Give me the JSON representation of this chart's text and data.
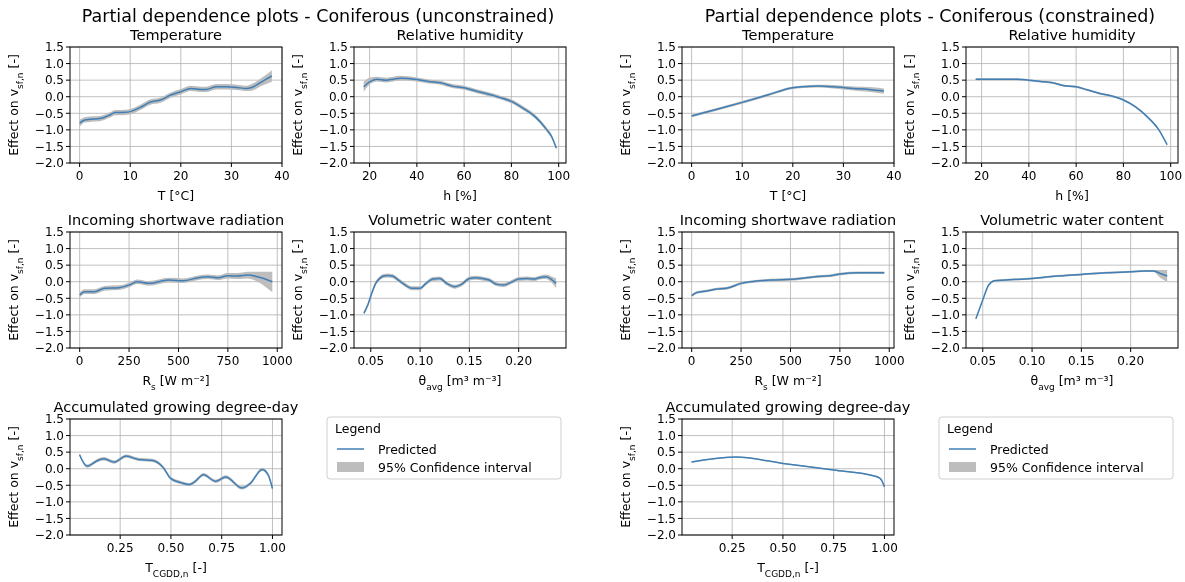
{
  "chart_data": [
    {
      "type": "line",
      "title": "Temperature",
      "xlabel": "T [°C]",
      "ylabel": "Effect on v$_{sf,n}$ [-]",
      "annotations": [
        "Partial dependence plots - Coniferous (unconstrained)"
      ],
      "xlim": [
        -1.9,
        40
      ],
      "xticks": [
        0,
        10,
        20,
        30,
        40
      ],
      "ylim": [
        -2,
        1.5
      ],
      "yticks": [
        {
          "value": -2,
          "label": "−2.0"
        },
        {
          "value": -1.5,
          "label": "−1.5"
        },
        {
          "value": -1,
          "label": "−1.0"
        },
        {
          "value": -0.5,
          "label": "−0.5"
        },
        {
          "value": 0,
          "label": "0.0"
        },
        {
          "value": 0.5,
          "label": "0.5"
        },
        {
          "value": 1,
          "label": "1.0"
        },
        {
          "value": 1.5,
          "label": "1.5"
        }
      ],
      "grid": true,
      "x": [
        0,
        1,
        2,
        4,
        6,
        7,
        9,
        10,
        12,
        14,
        16,
        18,
        20,
        22,
        24,
        25,
        27,
        29,
        31,
        33,
        34,
        36,
        38
      ],
      "series": [
        {
          "color": "#3f7fb6",
          "values": [
            -0.8,
            -0.7,
            -0.68,
            -0.66,
            -0.55,
            -0.48,
            -0.47,
            -0.45,
            -0.32,
            -0.16,
            -0.1,
            0.05,
            0.15,
            0.25,
            0.22,
            0.22,
            0.3,
            0.3,
            0.28,
            0.25,
            0.28,
            0.45,
            0.63
          ],
          "lower": [
            -0.9,
            -0.78,
            -0.76,
            -0.74,
            -0.63,
            -0.56,
            -0.55,
            -0.53,
            -0.4,
            -0.24,
            -0.18,
            -0.03,
            0.07,
            0.17,
            0.14,
            0.14,
            0.22,
            0.22,
            0.2,
            0.17,
            0.18,
            0.33,
            0.45
          ],
          "upper": [
            -0.7,
            -0.62,
            -0.6,
            -0.58,
            -0.47,
            -0.4,
            -0.39,
            -0.37,
            -0.24,
            -0.08,
            -0.02,
            0.13,
            0.23,
            0.33,
            0.3,
            0.3,
            0.38,
            0.38,
            0.36,
            0.33,
            0.38,
            0.57,
            0.8
          ]
        }
      ]
    },
    {
      "type": "line",
      "title": "Relative humidity",
      "xlabel": "h [%]",
      "ylabel": "Effect on v$_{sf,n}$ [-]",
      "xlim": [
        13.4,
        103.1
      ],
      "xticks": [
        20,
        40,
        60,
        80,
        100
      ],
      "ylim": [
        -2,
        1.5
      ],
      "yticks": [
        {
          "value": -2,
          "label": "−2.0"
        },
        {
          "value": -1.5,
          "label": "−1.5"
        },
        {
          "value": -1,
          "label": "−1.0"
        },
        {
          "value": -0.5,
          "label": "−0.5"
        },
        {
          "value": 0,
          "label": "0.0"
        },
        {
          "value": 0.5,
          "label": "0.5"
        },
        {
          "value": 1,
          "label": "1.0"
        },
        {
          "value": 1.5,
          "label": "1.5"
        }
      ],
      "grid": true,
      "x": [
        17.5,
        20,
        23,
        27,
        30,
        33,
        40,
        45,
        50,
        55,
        60,
        65,
        70,
        75,
        80,
        85,
        90,
        95,
        97,
        99
      ],
      "series": [
        {
          "color": "#3f7fb6",
          "values": [
            0.3,
            0.45,
            0.53,
            0.5,
            0.53,
            0.56,
            0.52,
            0.46,
            0.42,
            0.32,
            0.27,
            0.17,
            0.08,
            -0.02,
            -0.14,
            -0.35,
            -0.6,
            -1.0,
            -1.2,
            -1.55
          ],
          "lower": [
            0.15,
            0.37,
            0.46,
            0.43,
            0.46,
            0.49,
            0.46,
            0.4,
            0.36,
            0.26,
            0.21,
            0.11,
            0.02,
            -0.08,
            -0.2,
            -0.41,
            -0.66,
            -1.06,
            -1.26,
            -1.6
          ],
          "upper": [
            0.45,
            0.57,
            0.6,
            0.57,
            0.6,
            0.63,
            0.58,
            0.52,
            0.48,
            0.38,
            0.33,
            0.23,
            0.14,
            0.04,
            -0.08,
            -0.29,
            -0.54,
            -0.94,
            -1.14,
            -1.5
          ]
        }
      ]
    },
    {
      "type": "line",
      "title": "Incoming shortwave radiation",
      "xlabel": "R$_{s}$ [W m⁻²]",
      "ylabel": "Effect on v$_{sf,n}$ [-]",
      "xlim": [
        -49,
        1024
      ],
      "xticks": [
        0,
        250,
        500,
        750,
        1000
      ],
      "ylim": [
        -2,
        1.5
      ],
      "yticks": [
        {
          "value": -2,
          "label": "−2.0"
        },
        {
          "value": -1.5,
          "label": "−1.5"
        },
        {
          "value": -1,
          "label": "−1.0"
        },
        {
          "value": -0.5,
          "label": "−0.5"
        },
        {
          "value": 0,
          "label": "0.0"
        },
        {
          "value": 0.5,
          "label": "0.5"
        },
        {
          "value": 1,
          "label": "1.0"
        },
        {
          "value": 1.5,
          "label": "1.5"
        }
      ],
      "grid": true,
      "x": [
        0,
        25,
        75,
        125,
        200,
        250,
        290,
        350,
        450,
        525,
        600,
        650,
        700,
        750,
        800,
        850,
        900,
        975
      ],
      "series": [
        {
          "color": "#3f7fb6",
          "values": [
            -0.4,
            -0.3,
            -0.3,
            -0.2,
            -0.18,
            -0.1,
            0.0,
            -0.05,
            0.05,
            0.03,
            0.12,
            0.15,
            0.12,
            0.18,
            0.17,
            0.2,
            0.15,
            0.0
          ],
          "lower": [
            -0.48,
            -0.37,
            -0.37,
            -0.27,
            -0.25,
            -0.17,
            -0.07,
            -0.12,
            -0.02,
            -0.04,
            0.05,
            0.08,
            0.05,
            0.1,
            0.08,
            0.1,
            0.0,
            -0.32
          ],
          "upper": [
            -0.32,
            -0.23,
            -0.23,
            -0.13,
            -0.11,
            -0.03,
            0.07,
            0.02,
            0.12,
            0.1,
            0.19,
            0.22,
            0.19,
            0.26,
            0.26,
            0.3,
            0.3,
            0.3
          ]
        }
      ]
    },
    {
      "type": "line",
      "title": "Volumetric water content",
      "xlabel": "θ$_{avg}$ [m³ m⁻³]",
      "ylabel": "Effect on v$_{sf,n}$ [-]",
      "xlim": [
        0.033,
        0.248
      ],
      "xticks": [
        0.05,
        {
          "value": 0.1,
          "label": "0.10"
        },
        0.15,
        {
          "value": 0.2,
          "label": "0.20"
        }
      ],
      "ylim": [
        -2,
        1.5
      ],
      "yticks": [
        {
          "value": -2,
          "label": "−2.0"
        },
        {
          "value": -1.5,
          "label": "−1.5"
        },
        {
          "value": -1,
          "label": "−1.0"
        },
        {
          "value": -0.5,
          "label": "−0.5"
        },
        {
          "value": 0,
          "label": "0.0"
        },
        {
          "value": 0.5,
          "label": "0.5"
        },
        {
          "value": 1,
          "label": "1.0"
        },
        {
          "value": 1.5,
          "label": "1.5"
        }
      ],
      "grid": true,
      "x": [
        0.043,
        0.047,
        0.051,
        0.055,
        0.059,
        0.063,
        0.067,
        0.072,
        0.078,
        0.085,
        0.092,
        0.1,
        0.106,
        0.113,
        0.12,
        0.127,
        0.135,
        0.142,
        0.15,
        0.156,
        0.163,
        0.17,
        0.178,
        0.185,
        0.192,
        0.2,
        0.208,
        0.215,
        0.222,
        0.228,
        0.234,
        0.238
      ],
      "series": [
        {
          "color": "#3f7fb6",
          "values": [
            -0.95,
            -0.7,
            -0.35,
            -0.05,
            0.1,
            0.17,
            0.19,
            0.17,
            0.05,
            -0.1,
            -0.2,
            -0.2,
            -0.05,
            0.08,
            0.1,
            -0.05,
            -0.15,
            -0.08,
            0.1,
            0.12,
            0.1,
            0.05,
            -0.08,
            -0.1,
            -0.02,
            0.08,
            0.1,
            0.08,
            0.13,
            0.15,
            0.05,
            -0.05
          ],
          "lower": [
            -1.0,
            -0.76,
            -0.41,
            -0.11,
            0.04,
            0.11,
            0.13,
            0.11,
            -0.01,
            -0.16,
            -0.26,
            -0.26,
            -0.11,
            0.02,
            0.04,
            -0.11,
            -0.21,
            -0.14,
            0.04,
            0.06,
            0.04,
            -0.01,
            -0.14,
            -0.16,
            -0.08,
            0.02,
            0.04,
            0.02,
            0.07,
            0.08,
            -0.05,
            -0.2
          ],
          "upper": [
            -0.9,
            -0.64,
            -0.29,
            0.01,
            0.16,
            0.23,
            0.25,
            0.23,
            0.11,
            -0.04,
            -0.14,
            -0.14,
            0.01,
            0.14,
            0.16,
            0.01,
            -0.09,
            -0.02,
            0.16,
            0.18,
            0.16,
            0.11,
            -0.02,
            -0.04,
            0.04,
            0.14,
            0.16,
            0.14,
            0.19,
            0.22,
            0.15,
            0.1
          ]
        }
      ]
    },
    {
      "type": "line",
      "title": "Accumulated growing degree-day",
      "xlabel": "T$_{CGDD,n}$ [-]",
      "ylabel": "Effect on v$_{sf,n}$ [-]",
      "legend": "right",
      "legend_title": "Legend",
      "annotations": [
        "95% Confidence interval"
      ],
      "xlim": [
        0.003,
        1.047
      ],
      "xticks": [
        0.25,
        {
          "value": 0.5,
          "label": "0.50"
        },
        0.75,
        {
          "value": 1,
          "label": "1.00"
        }
      ],
      "ylim": [
        -2,
        1.5
      ],
      "yticks": [
        {
          "value": -2,
          "label": "−2.0"
        },
        {
          "value": -1.5,
          "label": "−1.5"
        },
        {
          "value": -1,
          "label": "−1.0"
        },
        {
          "value": -0.5,
          "label": "−0.5"
        },
        {
          "value": 0,
          "label": "0.0"
        },
        {
          "value": 0.5,
          "label": "0.5"
        },
        {
          "value": 1,
          "label": "1.0"
        },
        {
          "value": 1.5,
          "label": "1.5"
        }
      ],
      "grid": true,
      "x": [
        0.05,
        0.087,
        0.14,
        0.17,
        0.22,
        0.28,
        0.34,
        0.41,
        0.46,
        0.5,
        0.55,
        0.59,
        0.62,
        0.66,
        0.72,
        0.77,
        0.85,
        0.89,
        0.95,
        0.98,
        1.0
      ],
      "series": [
        {
          "name": "Predicted",
          "color": "#3f7fb6",
          "values": [
            0.42,
            0.08,
            0.25,
            0.3,
            0.2,
            0.38,
            0.28,
            0.25,
            0.05,
            -0.3,
            -0.42,
            -0.48,
            -0.38,
            -0.18,
            -0.38,
            -0.25,
            -0.58,
            -0.45,
            -0.02,
            -0.2,
            -0.6
          ],
          "lower": [
            0.37,
            0.03,
            0.2,
            0.25,
            0.15,
            0.33,
            0.23,
            0.2,
            0.0,
            -0.35,
            -0.47,
            -0.53,
            -0.43,
            -0.23,
            -0.43,
            -0.3,
            -0.63,
            -0.5,
            -0.07,
            -0.25,
            -0.65
          ],
          "upper": [
            0.47,
            0.13,
            0.3,
            0.35,
            0.25,
            0.43,
            0.33,
            0.3,
            0.1,
            -0.25,
            -0.37,
            -0.43,
            -0.33,
            -0.13,
            -0.33,
            -0.2,
            -0.53,
            -0.4,
            0.03,
            -0.15,
            -0.55
          ]
        }
      ]
    },
    {
      "type": "line",
      "title": "Temperature",
      "xlabel": "T [°C]",
      "ylabel": "Effect on v$_{sf,n}$ [-]",
      "annotations": [
        "Partial dependence plots - Coniferous (constrained)"
      ],
      "xlim": [
        -1.9,
        40
      ],
      "xticks": [
        0,
        10,
        20,
        30,
        40
      ],
      "ylim": [
        -2,
        1.5
      ],
      "yticks": [
        {
          "value": -2,
          "label": "−2.0"
        },
        {
          "value": -1.5,
          "label": "−1.5"
        },
        {
          "value": -1,
          "label": "−1.0"
        },
        {
          "value": -0.5,
          "label": "−0.5"
        },
        {
          "value": 0,
          "label": "0.0"
        },
        {
          "value": 0.5,
          "label": "0.5"
        },
        {
          "value": 1,
          "label": "1.0"
        },
        {
          "value": 1.5,
          "label": "1.5"
        }
      ],
      "grid": true,
      "x": [
        0,
        5,
        10,
        15,
        20,
        22,
        25,
        28,
        32,
        35,
        38
      ],
      "series": [
        {
          "color": "#3f7fb6",
          "values": [
            -0.58,
            -0.38,
            -0.17,
            0.05,
            0.27,
            0.3,
            0.32,
            0.3,
            0.25,
            0.22,
            0.17
          ],
          "lower": [
            -0.62,
            -0.42,
            -0.21,
            0.01,
            0.23,
            0.26,
            0.28,
            0.25,
            0.19,
            0.15,
            0.09
          ],
          "upper": [
            -0.54,
            -0.34,
            -0.13,
            0.09,
            0.31,
            0.34,
            0.36,
            0.35,
            0.31,
            0.29,
            0.25
          ]
        }
      ]
    },
    {
      "type": "line",
      "title": "Relative humidity",
      "xlabel": "h [%]",
      "ylabel": "Effect on v$_{sf,n}$ [-]",
      "xlim": [
        13.4,
        103.1
      ],
      "xticks": [
        20,
        40,
        60,
        80,
        100
      ],
      "ylim": [
        -2,
        1.5
      ],
      "yticks": [
        {
          "value": -2,
          "label": "−2.0"
        },
        {
          "value": -1.5,
          "label": "−1.5"
        },
        {
          "value": -1,
          "label": "−1.0"
        },
        {
          "value": -0.5,
          "label": "−0.5"
        },
        {
          "value": 0,
          "label": "0.0"
        },
        {
          "value": 0.5,
          "label": "0.5"
        },
        {
          "value": 1,
          "label": "1.0"
        },
        {
          "value": 1.5,
          "label": "1.5"
        }
      ],
      "grid": true,
      "x": [
        17.5,
        25,
        35,
        40,
        45,
        50,
        55,
        60,
        65,
        70,
        75,
        80,
        85,
        90,
        95,
        98.5
      ],
      "series": [
        {
          "color": "#3f7fb6",
          "values": [
            0.53,
            0.53,
            0.53,
            0.5,
            0.46,
            0.42,
            0.33,
            0.3,
            0.2,
            0.1,
            0.02,
            -0.1,
            -0.3,
            -0.6,
            -1.0,
            -1.45
          ],
          "lower": [
            0.5,
            0.5,
            0.5,
            0.47,
            0.43,
            0.39,
            0.3,
            0.27,
            0.17,
            0.07,
            -0.01,
            -0.13,
            -0.33,
            -0.63,
            -1.03,
            -1.48
          ],
          "upper": [
            0.56,
            0.56,
            0.56,
            0.53,
            0.49,
            0.45,
            0.36,
            0.33,
            0.23,
            0.13,
            0.05,
            -0.07,
            -0.27,
            -0.57,
            -0.97,
            -1.42
          ]
        }
      ]
    },
    {
      "type": "line",
      "title": "Incoming shortwave radiation",
      "xlabel": "R$_{s}$ [W m⁻²]",
      "ylabel": "Effect on v$_{sf,n}$ [-]",
      "xlim": [
        -49,
        1024
      ],
      "xticks": [
        0,
        250,
        500,
        750,
        1000
      ],
      "ylim": [
        -2,
        1.5
      ],
      "yticks": [
        {
          "value": -2,
          "label": "−2.0"
        },
        {
          "value": -1.5,
          "label": "−1.5"
        },
        {
          "value": -1,
          "label": "−1.0"
        },
        {
          "value": -0.5,
          "label": "−0.5"
        },
        {
          "value": 0,
          "label": "0.0"
        },
        {
          "value": 0.5,
          "label": "0.5"
        },
        {
          "value": 1,
          "label": "1.0"
        },
        {
          "value": 1.5,
          "label": "1.5"
        }
      ],
      "grid": true,
      "x": [
        0,
        25,
        75,
        125,
        175,
        250,
        300,
        400,
        525,
        625,
        700,
        750,
        850,
        975
      ],
      "series": [
        {
          "color": "#3f7fb6",
          "values": [
            -0.42,
            -0.33,
            -0.28,
            -0.22,
            -0.2,
            -0.05,
            0.0,
            0.05,
            0.08,
            0.15,
            0.18,
            0.23,
            0.27,
            0.27
          ],
          "lower": [
            -0.46,
            -0.37,
            -0.32,
            -0.26,
            -0.24,
            -0.09,
            -0.04,
            0.01,
            0.04,
            0.11,
            0.14,
            0.19,
            0.23,
            0.23
          ],
          "upper": [
            -0.38,
            -0.29,
            -0.24,
            -0.18,
            -0.16,
            -0.01,
            0.04,
            0.09,
            0.12,
            0.19,
            0.22,
            0.27,
            0.31,
            0.31
          ]
        }
      ]
    },
    {
      "type": "line",
      "title": "Volumetric water content",
      "xlabel": "θ$_{avg}$ [m³ m⁻³]",
      "ylabel": "Effect on v$_{sf,n}$ [-]",
      "xlim": [
        0.033,
        0.248
      ],
      "xticks": [
        0.05,
        {
          "value": 0.1,
          "label": "0.10"
        },
        0.15,
        {
          "value": 0.2,
          "label": "0.20"
        }
      ],
      "ylim": [
        -2,
        1.5
      ],
      "yticks": [
        {
          "value": -2,
          "label": "−2.0"
        },
        {
          "value": -1.5,
          "label": "−1.5"
        },
        {
          "value": -1,
          "label": "−1.0"
        },
        {
          "value": -0.5,
          "label": "−0.5"
        },
        {
          "value": 0,
          "label": "0.0"
        },
        {
          "value": 0.5,
          "label": "0.5"
        },
        {
          "value": 1,
          "label": "1.0"
        },
        {
          "value": 1.5,
          "label": "1.5"
        }
      ],
      "grid": true,
      "x": [
        0.043,
        0.05,
        0.056,
        0.062,
        0.073,
        0.1,
        0.125,
        0.15,
        0.175,
        0.2,
        0.214,
        0.223,
        0.23,
        0.237
      ],
      "series": [
        {
          "color": "#3f7fb6",
          "values": [
            -1.12,
            -0.55,
            -0.1,
            0.03,
            0.05,
            0.1,
            0.17,
            0.22,
            0.27,
            0.3,
            0.32,
            0.32,
            0.25,
            0.17
          ],
          "lower": [
            -1.15,
            -0.58,
            -0.13,
            0.0,
            0.02,
            0.07,
            0.14,
            0.19,
            0.24,
            0.27,
            0.29,
            0.29,
            0.12,
            0.0
          ],
          "upper": [
            -1.09,
            -0.52,
            -0.07,
            0.06,
            0.08,
            0.13,
            0.2,
            0.25,
            0.3,
            0.33,
            0.35,
            0.35,
            0.35,
            0.35
          ]
        }
      ]
    },
    {
      "type": "line",
      "title": "Accumulated growing degree-day",
      "xlabel": "T$_{CGDD,n}$ [-]",
      "ylabel": "Effect on v$_{sf,n}$ [-]",
      "legend": "right",
      "legend_title": "Legend",
      "annotations": [
        "95% Confidence interval"
      ],
      "xlim": [
        0.003,
        1.047
      ],
      "xticks": [
        0.25,
        {
          "value": 0.5,
          "label": "0.50"
        },
        0.75,
        {
          "value": 1,
          "label": "1.00"
        }
      ],
      "ylim": [
        -2,
        1.5
      ],
      "yticks": [
        {
          "value": -2,
          "label": "−2.0"
        },
        {
          "value": -1.5,
          "label": "−1.5"
        },
        {
          "value": -1,
          "label": "−1.0"
        },
        {
          "value": -0.5,
          "label": "−0.5"
        },
        {
          "value": 0,
          "label": "0.0"
        },
        {
          "value": 0.5,
          "label": "0.5"
        },
        {
          "value": 1,
          "label": "1.0"
        },
        {
          "value": 1.5,
          "label": "1.5"
        }
      ],
      "grid": true,
      "x": [
        0.05,
        0.27,
        0.5,
        0.75,
        0.95,
        0.98,
        1.0
      ],
      "series": [
        {
          "name": "Predicted",
          "color": "#3f7fb6",
          "values": [
            0.2,
            0.35,
            0.16,
            -0.04,
            -0.22,
            -0.3,
            -0.55
          ],
          "lower": [
            0.18,
            0.33,
            0.14,
            -0.06,
            -0.24,
            -0.32,
            -0.57
          ],
          "upper": [
            0.22,
            0.37,
            0.18,
            -0.02,
            -0.2,
            -0.28,
            -0.53
          ]
        }
      ]
    }
  ]
}
